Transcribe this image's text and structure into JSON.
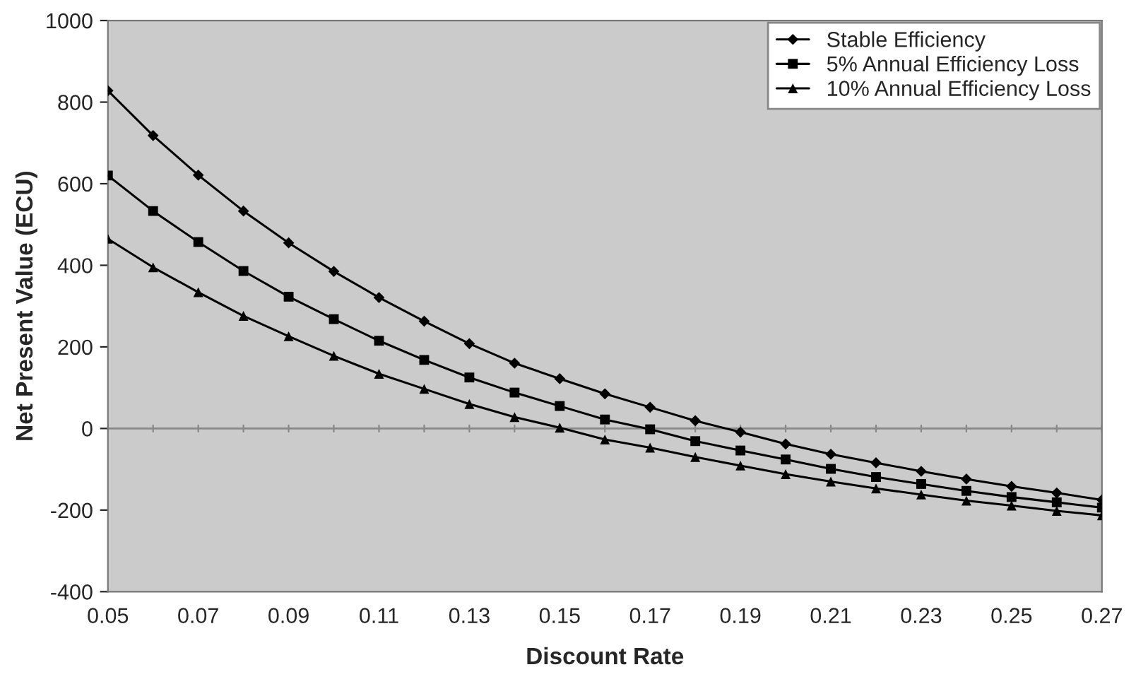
{
  "chart_data": {
    "type": "line",
    "xlabel": "Discount Rate",
    "ylabel": "Net Present Value (ECU)",
    "categories": [
      "0.05",
      null,
      "0.07",
      null,
      "0.09",
      null,
      "0.11",
      null,
      "0.13",
      null,
      "0.15",
      null,
      "0.17",
      null,
      "0.19",
      null,
      "0.21",
      null,
      "0.23",
      null,
      "0.25",
      null,
      "0.27"
    ],
    "series": [
      {
        "name": "Stable Efficiency",
        "color": "#000000",
        "marker": "diamond",
        "values": [
          828,
          718,
          621,
          533,
          455,
          385,
          321,
          263,
          208,
          160,
          122,
          85,
          52,
          19,
          -9,
          -38,
          -63,
          -84,
          -105,
          -124,
          -142,
          -158,
          -175
        ]
      },
      {
        "name": "5% Annual Efficiency Loss",
        "color": "#000000",
        "marker": "square",
        "values": [
          620,
          533,
          457,
          386,
          323,
          268,
          215,
          168,
          125,
          88,
          55,
          22,
          -2,
          -31,
          -54,
          -76,
          -99,
          -119,
          -136,
          -153,
          -168,
          -181,
          -194
        ]
      },
      {
        "name": "10% Annual Efficiency Loss",
        "color": "#000000",
        "marker": "triangle",
        "values": [
          465,
          395,
          334,
          276,
          226,
          178,
          134,
          97,
          60,
          28,
          2,
          -27,
          -47,
          -70,
          -91,
          -112,
          -130,
          -147,
          -162,
          -177,
          -189,
          -202,
          -213
        ]
      }
    ],
    "ylim": [
      -400,
      1000
    ],
    "yticks": [
      -400,
      -200,
      0,
      200,
      400,
      600,
      800,
      1000
    ],
    "ref_lines": [
      {
        "axis": "y",
        "value": 0,
        "color": "#888888"
      }
    ],
    "legend": "top right",
    "line_style": "solid"
  }
}
